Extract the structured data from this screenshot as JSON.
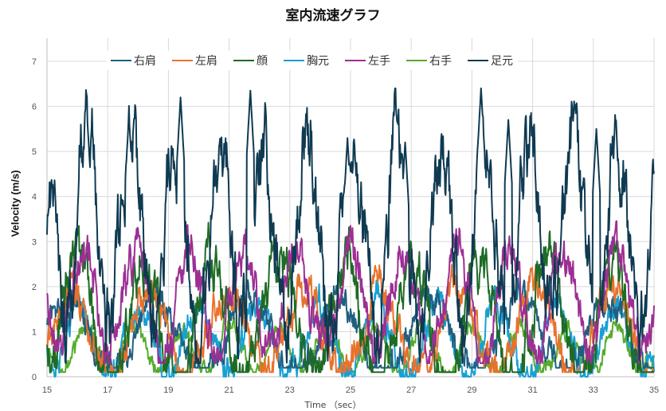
{
  "chart_data": {
    "type": "line",
    "title": "室内流速グラフ",
    "xlabel": "Time （sec）",
    "ylabel": "Velocity (m/s)",
    "xlim": [
      15,
      35
    ],
    "ylim": [
      0,
      7
    ],
    "xticks": [
      15,
      17,
      19,
      21,
      23,
      25,
      27,
      29,
      31,
      33,
      35
    ],
    "yticks": [
      0,
      1,
      2,
      3,
      4,
      5,
      6,
      7
    ],
    "grid": true,
    "legend_position": "top",
    "series": [
      {
        "name": "右肩",
        "color": "#1f5f7f",
        "approx_range": [
          0.2,
          2.7
        ],
        "approx_mean": 0.9
      },
      {
        "name": "左肩",
        "color": "#e8722c",
        "approx_range": [
          0.1,
          3.0
        ],
        "approx_mean": 1.0
      },
      {
        "name": "顔",
        "color": "#1e6b26",
        "approx_range": [
          0.1,
          4.2
        ],
        "approx_mean": 1.2
      },
      {
        "name": "胸元",
        "color": "#18a0d2",
        "approx_range": [
          0.0,
          2.4
        ],
        "approx_mean": 0.8
      },
      {
        "name": "左手",
        "color": "#9c2f94",
        "approx_range": [
          0.3,
          3.7
        ],
        "approx_mean": 1.7
      },
      {
        "name": "右手",
        "color": "#56ab2f",
        "approx_range": [
          0.1,
          1.6
        ],
        "approx_mean": 0.6
      },
      {
        "name": "足元",
        "color": "#0f3a52",
        "approx_range": [
          0.3,
          6.4
        ],
        "approx_mean": 3.2,
        "peaks": [
          [
            16.3,
            6.05
          ],
          [
            17.7,
            5.8
          ],
          [
            19.4,
            6.2
          ],
          [
            21.7,
            6.35
          ],
          [
            24.9,
            5.3
          ],
          [
            26.8,
            5.2
          ],
          [
            29.3,
            6.4
          ],
          [
            30.2,
            5.7
          ],
          [
            33.1,
            5.5
          ]
        ]
      }
    ]
  }
}
